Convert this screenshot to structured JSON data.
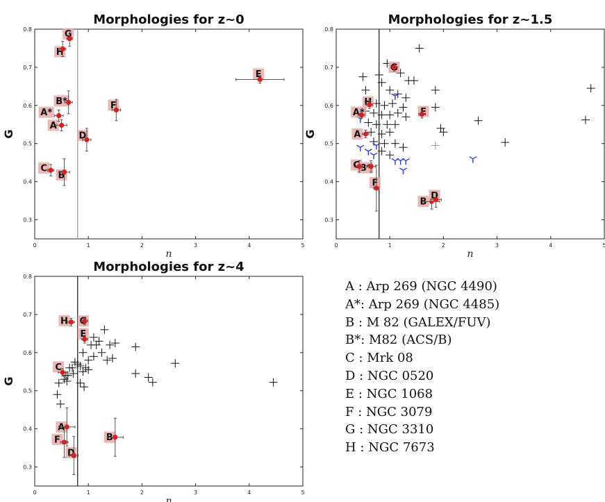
{
  "colors": {
    "point": "#d42020",
    "label_bg": "#e8aaaa",
    "cross": "#111111",
    "blue_marker": "#2a3fd0",
    "vline_light": "#aaaaaa",
    "vline_dark": "#111111",
    "errorbar": "#555555"
  },
  "chart_data": [
    {
      "type": "scatter",
      "title": "Morphologies for z~0",
      "xlabel": "n",
      "ylabel": "G",
      "xlim": [
        0,
        5
      ],
      "ylim": [
        0.25,
        0.8
      ],
      "xticks": [
        "0",
        "1",
        "2",
        "3",
        "4",
        "5"
      ],
      "yticks": [
        "0.3",
        "0.4",
        "0.5",
        "0.6",
        "0.7",
        "0.8"
      ],
      "vline": {
        "x": 0.8,
        "style": "light"
      },
      "galaxies": [
        {
          "label": "A",
          "x": 0.5,
          "y": 0.548,
          "ex": 0.1,
          "ey": 0.015
        },
        {
          "label": "A*",
          "x": 0.45,
          "y": 0.573,
          "ex": 0.08,
          "ey": 0.015
        },
        {
          "label": "B",
          "x": 0.55,
          "y": 0.425,
          "ex": 0.1,
          "ey": 0.035
        },
        {
          "label": "B*",
          "x": 0.63,
          "y": 0.608,
          "ex": 0.07,
          "ey": 0.03
        },
        {
          "label": "C",
          "x": 0.3,
          "y": 0.43,
          "ex": 0.06,
          "ey": 0.015
        },
        {
          "label": "D",
          "x": 0.97,
          "y": 0.51,
          "ex": 0.08,
          "ey": 0.03
        },
        {
          "label": "E",
          "x": 4.2,
          "y": 0.668,
          "ex": 0.45,
          "ey": 0.01
        },
        {
          "label": "F",
          "x": 1.52,
          "y": 0.588,
          "ex": 0.08,
          "ey": 0.028
        },
        {
          "label": "G",
          "x": 0.65,
          "y": 0.775,
          "ex": 0.05,
          "ey": 0.02
        },
        {
          "label": "H",
          "x": 0.52,
          "y": 0.748,
          "ex": 0.06,
          "ey": 0.02
        }
      ],
      "crosses": [],
      "blue_points": []
    },
    {
      "type": "scatter",
      "title": "Morphologies for z~1.5",
      "xlabel": "n",
      "ylabel": "G",
      "xlim": [
        0,
        5
      ],
      "ylim": [
        0.25,
        0.8
      ],
      "xticks": [
        "0",
        "1",
        "2",
        "3",
        "4",
        "5"
      ],
      "yticks": [
        "0.3",
        "0.4",
        "0.5",
        "0.6",
        "0.7",
        "0.8"
      ],
      "vline": {
        "x": 0.8,
        "style": "dark"
      },
      "galaxies": [
        {
          "label": "A",
          "x": 0.55,
          "y": 0.525,
          "ex": 0.06,
          "ey": 0.01
        },
        {
          "label": "A*",
          "x": 0.47,
          "y": 0.575,
          "ex": 0.06,
          "ey": 0.01
        },
        {
          "label": "B",
          "x": 1.78,
          "y": 0.348,
          "ex": 0.15,
          "ey": 0.02
        },
        {
          "label": "B*",
          "x": 0.65,
          "y": 0.44,
          "ex": 0.08,
          "ey": 0.015
        },
        {
          "label": "C",
          "x": 0.43,
          "y": 0.44,
          "ex": 0.06,
          "ey": 0.015
        },
        {
          "label": "D",
          "x": 1.86,
          "y": 0.353,
          "ex": 0.1,
          "ey": 0.02
        },
        {
          "label": "E",
          "x": 1.6,
          "y": 0.577,
          "ex": 0.06,
          "ey": 0.01
        },
        {
          "label": "F",
          "x": 0.75,
          "y": 0.383,
          "ex": 0.05,
          "ey": 0.06
        },
        {
          "label": "G",
          "x": 1.08,
          "y": 0.7,
          "ex": 0.06,
          "ey": 0.01
        },
        {
          "label": "H",
          "x": 0.62,
          "y": 0.602,
          "ex": 0.06,
          "ey": 0.01
        }
      ],
      "crosses": [
        [
          1.55,
          0.75
        ],
        [
          0.5,
          0.675
        ],
        [
          0.8,
          0.68
        ],
        [
          0.95,
          0.71
        ],
        [
          1.2,
          0.685
        ],
        [
          1.35,
          0.665
        ],
        [
          1.45,
          0.665
        ],
        [
          0.55,
          0.64
        ],
        [
          0.85,
          0.66
        ],
        [
          1.0,
          0.64
        ],
        [
          1.15,
          0.63
        ],
        [
          1.3,
          0.62
        ],
        [
          0.6,
          0.61
        ],
        [
          0.75,
          0.605
        ],
        [
          0.9,
          0.6
        ],
        [
          1.05,
          0.605
        ],
        [
          1.25,
          0.595
        ],
        [
          0.55,
          0.585
        ],
        [
          0.7,
          0.58
        ],
        [
          0.85,
          0.575
        ],
        [
          1.0,
          0.575
        ],
        [
          1.15,
          0.58
        ],
        [
          1.3,
          0.57
        ],
        [
          0.6,
          0.555
        ],
        [
          0.75,
          0.55
        ],
        [
          0.95,
          0.55
        ],
        [
          1.1,
          0.55
        ],
        [
          0.65,
          0.53
        ],
        [
          0.85,
          0.525
        ],
        [
          1.0,
          0.53
        ],
        [
          0.7,
          0.505
        ],
        [
          0.9,
          0.5
        ],
        [
          1.1,
          0.5
        ],
        [
          1.85,
          0.64
        ],
        [
          1.85,
          0.595
        ],
        [
          1.95,
          0.54
        ],
        [
          2.0,
          0.53
        ],
        [
          2.65,
          0.56
        ],
        [
          3.15,
          0.503
        ],
        [
          4.65,
          0.562
        ],
        [
          4.75,
          0.645
        ],
        [
          0.85,
          0.48
        ],
        [
          1.0,
          0.47
        ],
        [
          1.25,
          0.49
        ]
      ],
      "faded_crosses": [
        [
          1.85,
          0.495
        ]
      ],
      "blue_points": [
        [
          0.45,
          0.565
        ],
        [
          0.45,
          0.49
        ],
        [
          0.6,
          0.48
        ],
        [
          0.75,
          0.495
        ],
        [
          0.7,
          0.47
        ],
        [
          1.1,
          0.625
        ],
        [
          1.1,
          0.455
        ],
        [
          1.2,
          0.455
        ],
        [
          1.3,
          0.455
        ],
        [
          1.25,
          0.43
        ],
        [
          2.55,
          0.46
        ]
      ]
    },
    {
      "type": "scatter",
      "title": "Morphologies for z~4",
      "xlabel": "n",
      "ylabel": "G",
      "xlim": [
        0,
        5
      ],
      "ylim": [
        0.25,
        0.8
      ],
      "xticks": [
        "0",
        "1",
        "2",
        "3",
        "4",
        "5"
      ],
      "yticks": [
        "0.3",
        "0.4",
        "0.5",
        "0.6",
        "0.7",
        "0.8"
      ],
      "vline": {
        "x": 0.8,
        "style": "dark"
      },
      "galaxies": [
        {
          "label": "A",
          "x": 0.6,
          "y": 0.405,
          "ex": 0.15,
          "ey": 0.05
        },
        {
          "label": "B",
          "x": 1.5,
          "y": 0.378,
          "ex": 0.15,
          "ey": 0.05
        },
        {
          "label": "C",
          "x": 0.52,
          "y": 0.548,
          "ex": 0.08,
          "ey": 0.01
        },
        {
          "label": "D",
          "x": 0.73,
          "y": 0.33,
          "ex": 0.08,
          "ey": 0.05
        },
        {
          "label": "E",
          "x": 0.93,
          "y": 0.635,
          "ex": 0.06,
          "ey": 0.01
        },
        {
          "label": "F",
          "x": 0.55,
          "y": 0.365,
          "ex": 0.07,
          "ey": 0.04
        },
        {
          "label": "G",
          "x": 0.93,
          "y": 0.683,
          "ex": 0.06,
          "ey": 0.01
        },
        {
          "label": "H",
          "x": 0.68,
          "y": 0.68,
          "ex": 0.06,
          "ey": 0.01
        }
      ],
      "crosses": [
        [
          0.42,
          0.49
        ],
        [
          0.48,
          0.465
        ],
        [
          0.45,
          0.52
        ],
        [
          0.55,
          0.53
        ],
        [
          0.6,
          0.525
        ],
        [
          0.62,
          0.54
        ],
        [
          0.7,
          0.56
        ],
        [
          0.75,
          0.575
        ],
        [
          0.8,
          0.57
        ],
        [
          0.72,
          0.545
        ],
        [
          0.85,
          0.565
        ],
        [
          0.9,
          0.55
        ],
        [
          0.95,
          0.56
        ],
        [
          0.92,
          0.51
        ],
        [
          0.85,
          0.52
        ],
        [
          0.9,
          0.6
        ],
        [
          1.0,
          0.58
        ],
        [
          1.05,
          0.62
        ],
        [
          1.1,
          0.64
        ],
        [
          1.15,
          0.62
        ],
        [
          1.2,
          0.63
        ],
        [
          1.25,
          0.6
        ],
        [
          1.3,
          0.66
        ],
        [
          1.35,
          0.58
        ],
        [
          1.4,
          0.62
        ],
        [
          1.45,
          0.585
        ],
        [
          1.5,
          0.625
        ],
        [
          1.1,
          0.59
        ],
        [
          1.0,
          0.555
        ],
        [
          0.65,
          0.56
        ],
        [
          0.58,
          0.54
        ],
        [
          1.88,
          0.615
        ],
        [
          1.88,
          0.545
        ],
        [
          2.12,
          0.535
        ],
        [
          2.2,
          0.522
        ],
        [
          2.62,
          0.572
        ],
        [
          4.45,
          0.522
        ]
      ],
      "blue_points": []
    }
  ],
  "legend_entries": [
    {
      "key": "A",
      "sep": " : ",
      "name": "Arp 269 (NGC 4490)"
    },
    {
      "key": "A*",
      "sep": ": ",
      "name": "Arp 269 (NGC 4485)"
    },
    {
      "key": "B",
      "sep": " : ",
      "name": "M 82 (GALEX/FUV)"
    },
    {
      "key": "B*",
      "sep": ": ",
      "name": "M82 (ACS/B)"
    },
    {
      "key": "C",
      "sep": " : ",
      "name": "Mrk 08"
    },
    {
      "key": "D",
      "sep": " : ",
      "name": "NGC 0520"
    },
    {
      "key": "E",
      "sep": " : ",
      "name": "NGC 1068"
    },
    {
      "key": "F",
      "sep": " : ",
      "name": "NGC 3079"
    },
    {
      "key": "G",
      "sep": " : ",
      "name": "NGC 3310"
    },
    {
      "key": "H",
      "sep": " : ",
      "name": "NGC 7673"
    }
  ]
}
